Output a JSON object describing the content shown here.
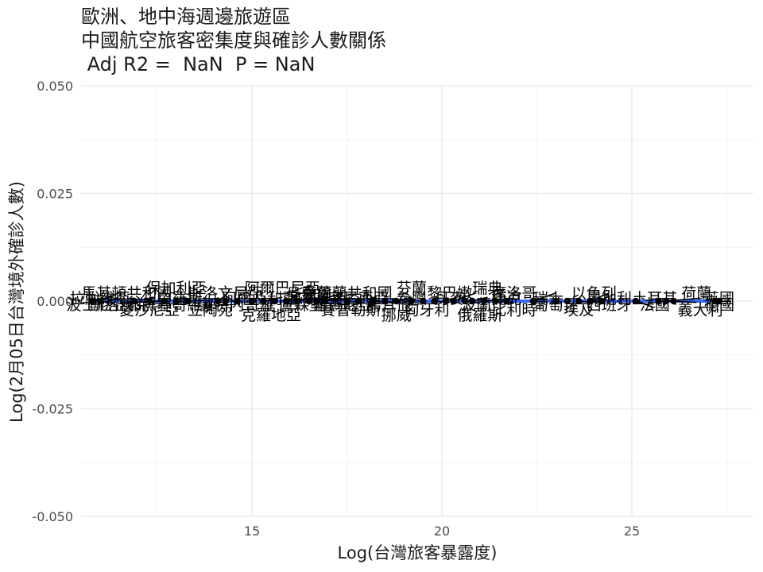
{
  "chart_data": {
    "type": "scatter",
    "title_lines": [
      "歐洲、地中海週邊旅遊區",
      "中國航空旅客密集度與確診人數關係",
      " Adj R2 =  NaN  P = NaN"
    ],
    "xlabel": "Log(台灣旅客暴露度)",
    "ylabel": "Log(2月05日台灣境外確診人數)",
    "xlim": [
      10.5,
      28.2
    ],
    "ylim": [
      -0.05,
      0.05
    ],
    "x_ticks": [
      15,
      20,
      25
    ],
    "x_tick_labels": [
      "15",
      "20",
      "25"
    ],
    "y_ticks": [
      -0.05,
      -0.025,
      0,
      0.025,
      0.05
    ],
    "y_tick_labels": [
      "-0.050",
      "-0.025",
      "0.000",
      "0.025",
      "0.050"
    ],
    "grid": true,
    "regression_line": {
      "color": "#3366ff",
      "x": [
        10.8,
        27.2
      ],
      "y": [
        0,
        0
      ]
    },
    "points": [
      {
        "name": "拉脫維亞",
        "x": 10.8,
        "y": 0,
        "lx": 11.0,
        "ly": 0.0007
      },
      {
        "name": "斯洛伐克",
        "x": 11.0,
        "y": 0,
        "lx": 11.5,
        "ly": -0.0007
      },
      {
        "name": "波士尼亞和黑塞哥維那",
        "x": 11.9,
        "y": 0,
        "lx": 12.1,
        "ly": -0.0007
      },
      {
        "name": "愛沙尼亞",
        "x": 12.3,
        "y": 0,
        "lx": 12.3,
        "ly": -0.0019
      },
      {
        "name": "馬其頓共和國",
        "x": 12.7,
        "y": 0,
        "lx": 11.7,
        "ly": 0.0019
      },
      {
        "name": "保加利亞",
        "x": 13.0,
        "y": 0,
        "lx": 13.0,
        "ly": 0.0031
      },
      {
        "name": "白羅斯",
        "x": 13.3,
        "y": 0,
        "lx": 13.1,
        "ly": 0.0007
      },
      {
        "name": "立陶宛",
        "x": 14.1,
        "y": 0,
        "lx": 13.9,
        "ly": -0.0019
      },
      {
        "name": "斯洛文尼亞",
        "x": 14.3,
        "y": 0,
        "lx": 14.3,
        "ly": 0.0019
      },
      {
        "name": "蒙特內哥羅",
        "x": 14.6,
        "y": 0,
        "lx": 14.6,
        "ly": -0.0007
      },
      {
        "name": "阿爾及利亞",
        "x": 15.0,
        "y": 0,
        "lx": 15.2,
        "ly": 0.0007
      },
      {
        "name": "阿爾巴尼亞",
        "x": 15.3,
        "y": 0,
        "lx": 15.8,
        "ly": 0.0031
      },
      {
        "name": "克羅地亞",
        "x": 15.6,
        "y": 0,
        "lx": 15.5,
        "ly": -0.0031
      },
      {
        "name": "盧森堡",
        "x": 15.9,
        "y": 0,
        "lx": 16.3,
        "ly": -0.0007
      },
      {
        "name": "烏克蘭",
        "x": 16.2,
        "y": 0,
        "lx": 16.5,
        "ly": 0.0019
      },
      {
        "name": "塞爾維亞",
        "x": 16.5,
        "y": 0,
        "lx": 16.7,
        "ly": 0.0007
      },
      {
        "name": "羅馬尼亞",
        "x": 16.7,
        "y": 0,
        "lx": 17.4,
        "ly": -0.0007
      },
      {
        "name": "賽普勒斯",
        "x": 16.9,
        "y": 0,
        "lx": 17.6,
        "ly": -0.0019
      },
      {
        "name": "愛爾蘭共和國",
        "x": 17.5,
        "y": 0,
        "lx": 17.5,
        "ly": 0.0019
      },
      {
        "name": "突尼西亞",
        "x": 17.8,
        "y": 0,
        "lx": 17.8,
        "ly": 0.0007
      },
      {
        "name": "挪威",
        "x": 18.2,
        "y": 0,
        "lx": 18.8,
        "ly": -0.0031
      },
      {
        "name": "馬耳他",
        "x": 18.5,
        "y": 0,
        "lx": 18.6,
        "ly": -0.0007
      },
      {
        "name": "芬蘭",
        "x": 18.8,
        "y": 0,
        "lx": 19.2,
        "ly": 0.0031
      },
      {
        "name": "希臘",
        "x": 19.2,
        "y": 0,
        "lx": 19.2,
        "ly": 0.0007
      },
      {
        "name": "匈牙利",
        "x": 19.5,
        "y": 0,
        "lx": 19.6,
        "ly": -0.0019
      },
      {
        "name": "黎巴嫩",
        "x": 19.8,
        "y": 0,
        "lx": 20.2,
        "ly": 0.0019
      },
      {
        "name": "丹麥",
        "x": 20.1,
        "y": 0,
        "lx": 20.2,
        "ly": 0.0007
      },
      {
        "name": "波蘭",
        "x": 20.3,
        "y": 0,
        "lx": 20.9,
        "ly": -0.0007
      },
      {
        "name": "俄羅斯",
        "x": 20.6,
        "y": 0,
        "lx": 21.0,
        "ly": -0.0031
      },
      {
        "name": "瑞典",
        "x": 20.8,
        "y": 0,
        "lx": 21.2,
        "ly": 0.0031
      },
      {
        "name": "比利時",
        "x": 21.1,
        "y": 0,
        "lx": 21.9,
        "ly": -0.0019
      },
      {
        "name": "摩洛哥",
        "x": 21.4,
        "y": 0,
        "lx": 21.9,
        "ly": 0.0019
      },
      {
        "name": "捷克",
        "x": 21.7,
        "y": 0,
        "lx": 21.7,
        "ly": 0.0007
      },
      {
        "name": "葡萄牙",
        "x": 22.4,
        "y": 0,
        "lx": 23.0,
        "ly": -0.0007
      },
      {
        "name": "瑞士",
        "x": 23.0,
        "y": 0,
        "lx": 22.8,
        "ly": 0.0007
      },
      {
        "name": "埃及",
        "x": 23.3,
        "y": 0,
        "lx": 23.6,
        "ly": -0.0019
      },
      {
        "name": "以色列",
        "x": 23.6,
        "y": 0,
        "lx": 24.0,
        "ly": 0.0019
      },
      {
        "name": "西班牙",
        "x": 23.9,
        "y": 0,
        "lx": 24.4,
        "ly": -0.0007
      },
      {
        "name": "奧地利",
        "x": 24.2,
        "y": 0,
        "lx": 24.4,
        "ly": 0.0007
      },
      {
        "name": "土耳其",
        "x": 25.1,
        "y": 0,
        "lx": 25.6,
        "ly": 0.0007
      },
      {
        "name": "法國",
        "x": 25.7,
        "y": 0,
        "lx": 25.6,
        "ly": -0.0007
      },
      {
        "name": "義大利",
        "x": 25.9,
        "y": 0,
        "lx": 26.8,
        "ly": -0.0019
      },
      {
        "name": "荷蘭",
        "x": 26.1,
        "y": 0,
        "lx": 26.7,
        "ly": 0.0019
      },
      {
        "name": "英國",
        "x": 27.2,
        "y": 0,
        "lx": 27.3,
        "ly": 0.0007
      },
      {
        "name": "德國",
        "x": 27.3,
        "y": 0,
        "lx": 27.3,
        "ly": -0.0007
      }
    ]
  }
}
